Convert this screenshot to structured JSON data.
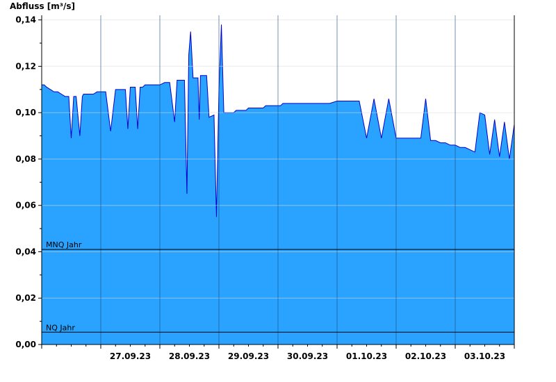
{
  "chart_data": {
    "type": "area",
    "ylabel": "Abfluss [m³/s]",
    "xlabel": "",
    "ylim": [
      0,
      0.142
    ],
    "yticks": [
      0,
      0.02,
      0.04,
      0.06,
      0.08,
      0.1,
      0.12,
      0.14
    ],
    "ytick_labels": [
      "0,00",
      "0,02",
      "0,04",
      "0,06",
      "0,08",
      "0,10",
      "0,12",
      "0,14"
    ],
    "xlim": [
      "2023-09-26T00:00",
      "2023-10-04T00:00"
    ],
    "xticks": [
      "2023-09-27",
      "2023-09-28",
      "2023-09-29",
      "2023-09-30",
      "2023-10-01",
      "2023-10-02",
      "2023-10-03"
    ],
    "xtick_labels": [
      "27.09.23",
      "28.09.23",
      "29.09.23",
      "30.09.23",
      "01.10.23",
      "02.10.23",
      "03.10.23"
    ],
    "grid": true,
    "colors": {
      "fill": "#29a3ff",
      "line": "#0000cc"
    },
    "reference_lines": [
      {
        "label": "MNQ Jahr",
        "value": 0.041
      },
      {
        "label": "NQ Jahr",
        "value": 0.0053
      }
    ],
    "series": [
      {
        "x": [
          "2023-09-26T00:00",
          "2023-09-26T01:00",
          "2023-09-26T02:00",
          "2023-09-26T03:30",
          "2023-09-26T05:00",
          "2023-09-26T06:30",
          "2023-09-26T08:00",
          "2023-09-26T09:30",
          "2023-09-26T11:00",
          "2023-09-26T12:00",
          "2023-09-26T13:00",
          "2023-09-26T14:00",
          "2023-09-26T15:30",
          "2023-09-26T16:30",
          "2023-09-26T17:00",
          "2023-09-26T17:30",
          "2023-09-26T18:00",
          "2023-09-26T19:00",
          "2023-09-26T20:00",
          "2023-09-26T21:00",
          "2023-09-26T22:30",
          "2023-09-27T00:00",
          "2023-09-27T02:00",
          "2023-09-27T04:00",
          "2023-09-27T06:00",
          "2023-09-27T08:00",
          "2023-09-27T09:00",
          "2023-09-27T10:00",
          "2023-09-27T11:00",
          "2023-09-27T12:00",
          "2023-09-27T14:00",
          "2023-09-27T15:00",
          "2023-09-27T16:00",
          "2023-09-27T17:00",
          "2023-09-27T18:00",
          "2023-09-27T19:00",
          "2023-09-27T20:00",
          "2023-09-27T22:00",
          "2023-09-28T00:00",
          "2023-09-28T02:00",
          "2023-09-28T04:00",
          "2023-09-28T06:00",
          "2023-09-28T07:00",
          "2023-09-28T10:00",
          "2023-09-28T11:00",
          "2023-09-28T11:45",
          "2023-09-28T12:30",
          "2023-09-28T13:30",
          "2023-09-28T14:30",
          "2023-09-28T15:30",
          "2023-09-28T16:00",
          "2023-09-28T16:30",
          "2023-09-28T17:30",
          "2023-09-28T18:30",
          "2023-09-28T19:00",
          "2023-09-28T20:00",
          "2023-09-28T22:00",
          "2023-09-28T23:00",
          "2023-09-29T00:00",
          "2023-09-29T01:00",
          "2023-09-29T02:00",
          "2023-09-29T03:00",
          "2023-09-29T04:00",
          "2023-09-29T05:00",
          "2023-09-29T06:00",
          "2023-09-29T07:00",
          "2023-09-29T08:00",
          "2023-09-29T09:00",
          "2023-09-29T10:00",
          "2023-09-29T11:00",
          "2023-09-29T12:00",
          "2023-09-29T13:00",
          "2023-09-29T14:00",
          "2023-09-29T15:00",
          "2023-09-29T16:00",
          "2023-09-29T17:00",
          "2023-09-29T18:00",
          "2023-09-29T19:00",
          "2023-09-29T20:00",
          "2023-09-29T21:00",
          "2023-09-29T22:00",
          "2023-09-29T23:00",
          "2023-09-30T00:00",
          "2023-09-30T01:00",
          "2023-09-30T02:00",
          "2023-09-30T03:00",
          "2023-09-30T05:00",
          "2023-09-30T07:00",
          "2023-09-30T09:00",
          "2023-09-30T12:00",
          "2023-09-30T15:00",
          "2023-09-30T18:00",
          "2023-09-30T21:00",
          "2023-10-01T00:00",
          "2023-10-01T03:00",
          "2023-10-01T06:00",
          "2023-10-01T09:00",
          "2023-10-01T12:00",
          "2023-10-01T15:00",
          "2023-10-01T18:00",
          "2023-10-01T21:00",
          "2023-10-02T00:00",
          "2023-10-02T02:00",
          "2023-10-02T04:00",
          "2023-10-02T06:00",
          "2023-10-02T08:00",
          "2023-10-02T10:00",
          "2023-10-02T12:00",
          "2023-10-02T14:00",
          "2023-10-02T16:00",
          "2023-10-02T18:00",
          "2023-10-02T20:00",
          "2023-10-02T22:00",
          "2023-10-03T00:00",
          "2023-10-03T02:00",
          "2023-10-03T04:00",
          "2023-10-03T06:00",
          "2023-10-03T08:00",
          "2023-10-03T10:00",
          "2023-10-03T12:00",
          "2023-10-03T14:00",
          "2023-10-03T16:00",
          "2023-10-03T18:00",
          "2023-10-03T20:00",
          "2023-10-03T22:00",
          "2023-10-04T00:00"
        ],
        "values": [
          0.112,
          0.112,
          0.111,
          0.11,
          0.109,
          0.109,
          0.108,
          0.107,
          0.107,
          0.089,
          0.107,
          0.107,
          0.09,
          0.107,
          0.108,
          0.108,
          0.108,
          0.108,
          0.108,
          0.108,
          0.109,
          0.109,
          0.109,
          0.092,
          0.11,
          0.11,
          0.11,
          0.11,
          0.093,
          0.111,
          0.111,
          0.093,
          0.111,
          0.111,
          0.112,
          0.112,
          0.112,
          0.112,
          0.112,
          0.113,
          0.113,
          0.096,
          0.114,
          0.114,
          0.065,
          0.125,
          0.135,
          0.115,
          0.115,
          0.115,
          0.097,
          0.116,
          0.116,
          0.116,
          0.116,
          0.098,
          0.099,
          0.055,
          0.11,
          0.138,
          0.1,
          0.1,
          0.1,
          0.1,
          0.1,
          0.101,
          0.101,
          0.101,
          0.101,
          0.101,
          0.102,
          0.102,
          0.102,
          0.102,
          0.102,
          0.102,
          0.102,
          0.103,
          0.103,
          0.103,
          0.103,
          0.103,
          0.103,
          0.103,
          0.104,
          0.104,
          0.104,
          0.104,
          0.104,
          0.104,
          0.104,
          0.104,
          0.104,
          0.105,
          0.105,
          0.105,
          0.105,
          0.089,
          0.106,
          0.089,
          0.106,
          0.089,
          0.089,
          0.089,
          0.089,
          0.089,
          0.089,
          0.106,
          0.088,
          0.088,
          0.087,
          0.087,
          0.086,
          0.086,
          0.085,
          0.085,
          0.084,
          0.083,
          0.1,
          0.099,
          0.082,
          0.097,
          0.081,
          0.096,
          0.08,
          0.095
        ]
      }
    ]
  }
}
